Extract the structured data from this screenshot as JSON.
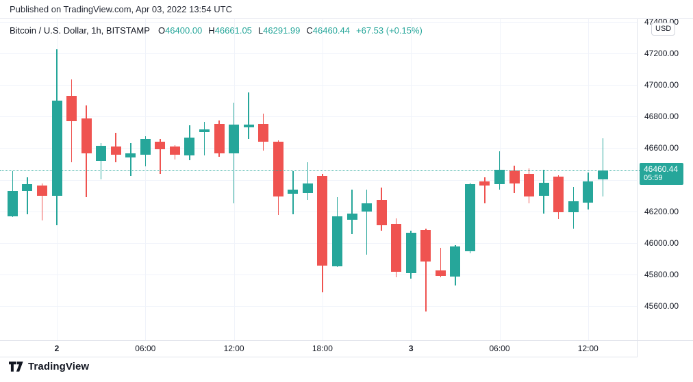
{
  "published": {
    "text": "Published on TradingView.com, Apr 03, 2022 13:54 UTC"
  },
  "legend": {
    "symbol": "Bitcoin / U.S. Dollar, 1h, BITSTAMP",
    "ohlc": [
      {
        "label": "O",
        "value": "46400.00"
      },
      {
        "label": "H",
        "value": "46661.05"
      },
      {
        "label": "L",
        "value": "46291.99"
      },
      {
        "label": "C",
        "value": "46460.44"
      }
    ],
    "change": "+67.53 (+0.15%)"
  },
  "price_axis": {
    "currency_button": "USD",
    "last_price_badge": {
      "price": "46460.44",
      "countdown": "05:59"
    }
  },
  "footer": {
    "brand": "TradingView"
  },
  "colors": {
    "up": "#26a69a",
    "down": "#ef5350",
    "badge": "#26a69a",
    "grid": "#f0f3fa",
    "axis_border": "#e0e3eb",
    "text": "#131722"
  },
  "chart_data": {
    "type": "candlestick",
    "title": "Bitcoin / U.S. Dollar",
    "interval": "1h",
    "exchange": "BITSTAMP",
    "last_price": 46460.44,
    "countdown": "05:59",
    "ylim": [
      45383,
      47417
    ],
    "grid": true,
    "y_ticks": [
      47400,
      47200,
      47000,
      46800,
      46600,
      46400,
      46200,
      46000,
      45800,
      45600
    ],
    "x_ticks": [
      {
        "index": 3,
        "label": "2",
        "bold": true
      },
      {
        "index": 9,
        "label": "06:00",
        "bold": false
      },
      {
        "index": 15,
        "label": "12:00",
        "bold": false
      },
      {
        "index": 21,
        "label": "18:00",
        "bold": false
      },
      {
        "index": 27,
        "label": "3",
        "bold": true
      },
      {
        "index": 33,
        "label": "06:00",
        "bold": false
      },
      {
        "index": 39,
        "label": "12:00",
        "bold": false
      }
    ],
    "candles_format": [
      "time",
      "open",
      "high",
      "low",
      "close"
    ],
    "candles": [
      [
        "Apr 1 21:00",
        46170,
        46455,
        46165,
        46330
      ],
      [
        "Apr 1 22:00",
        46330,
        46415,
        46180,
        46370
      ],
      [
        "Apr 1 23:00",
        46365,
        46375,
        46140,
        46300
      ],
      [
        "Apr 2 00:00",
        46300,
        47225,
        46110,
        46900
      ],
      [
        "Apr 2 01:00",
        46930,
        47035,
        46510,
        46770
      ],
      [
        "Apr 2 02:00",
        46790,
        46870,
        46290,
        46565
      ],
      [
        "Apr 2 03:00",
        46520,
        46630,
        46400,
        46615
      ],
      [
        "Apr 2 04:00",
        46610,
        46695,
        46510,
        46560
      ],
      [
        "Apr 2 05:00",
        46540,
        46630,
        46425,
        46565
      ],
      [
        "Apr 2 06:00",
        46560,
        46675,
        46485,
        46660
      ],
      [
        "Apr 2 07:00",
        46640,
        46660,
        46435,
        46595
      ],
      [
        "Apr 2 08:00",
        46610,
        46620,
        46530,
        46560
      ],
      [
        "Apr 2 09:00",
        46555,
        46745,
        46525,
        46665
      ],
      [
        "Apr 2 10:00",
        46700,
        46765,
        46555,
        46720
      ],
      [
        "Apr 2 11:00",
        46755,
        46775,
        46545,
        46565
      ],
      [
        "Apr 2 12:00",
        46565,
        46890,
        46250,
        46750
      ],
      [
        "Apr 2 13:00",
        46730,
        46955,
        46660,
        46750
      ],
      [
        "Apr 2 14:00",
        46755,
        46820,
        46585,
        46640
      ],
      [
        "Apr 2 15:00",
        46640,
        46650,
        46175,
        46295
      ],
      [
        "Apr 2 16:00",
        46310,
        46455,
        46180,
        46335
      ],
      [
        "Apr 2 17:00",
        46315,
        46510,
        46270,
        46375
      ],
      [
        "Apr 2 18:00",
        46425,
        46435,
        45685,
        45855
      ],
      [
        "Apr 2 19:00",
        45850,
        46290,
        45845,
        46170
      ],
      [
        "Apr 2 20:00",
        46145,
        46335,
        46055,
        46185
      ],
      [
        "Apr 2 21:00",
        46200,
        46335,
        45925,
        46250
      ],
      [
        "Apr 2 22:00",
        46270,
        46350,
        46075,
        46110
      ],
      [
        "Apr 2 23:00",
        46120,
        46155,
        45780,
        45815
      ],
      [
        "Apr 3 00:00",
        45810,
        46075,
        45775,
        46065
      ],
      [
        "Apr 3 01:00",
        46080,
        46090,
        45565,
        45880
      ],
      [
        "Apr 3 02:00",
        45825,
        45970,
        45780,
        45790
      ],
      [
        "Apr 3 03:00",
        45785,
        45985,
        45730,
        45975
      ],
      [
        "Apr 3 04:00",
        45945,
        46380,
        45935,
        46370
      ],
      [
        "Apr 3 05:00",
        46390,
        46415,
        46250,
        46365
      ],
      [
        "Apr 3 06:00",
        46370,
        46580,
        46335,
        46465
      ],
      [
        "Apr 3 07:00",
        46460,
        46490,
        46315,
        46375
      ],
      [
        "Apr 3 08:00",
        46435,
        46470,
        46250,
        46295
      ],
      [
        "Apr 3 09:00",
        46300,
        46465,
        46185,
        46380
      ],
      [
        "Apr 3 10:00",
        46420,
        46430,
        46150,
        46195
      ],
      [
        "Apr 3 11:00",
        46195,
        46355,
        46090,
        46265
      ],
      [
        "Apr 3 12:00",
        46255,
        46445,
        46210,
        46390
      ],
      [
        "Apr 3 13:00",
        46400.0,
        46661.05,
        46291.99,
        46460.44
      ]
    ]
  }
}
